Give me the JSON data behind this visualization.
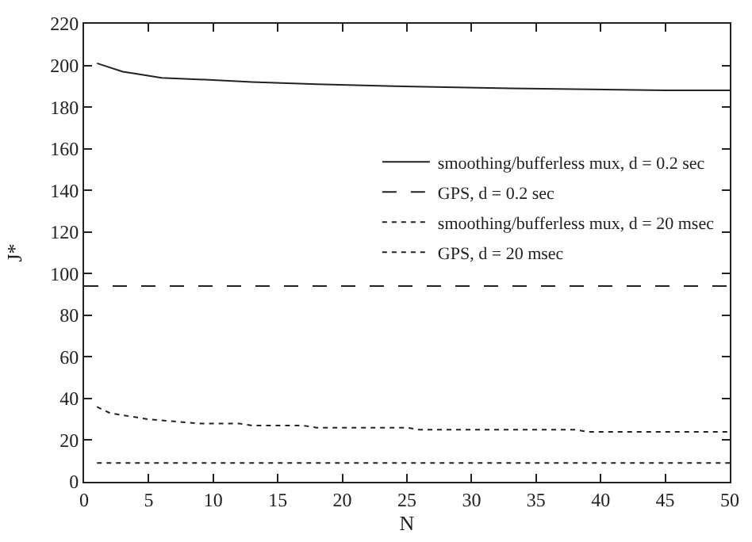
{
  "chart_data": {
    "type": "line",
    "xlabel": "N",
    "ylabel": "J*",
    "xlim": [
      0,
      50
    ],
    "xticks": [
      0,
      5,
      10,
      15,
      20,
      25,
      30,
      35,
      40,
      45,
      50
    ],
    "ylim": [
      0,
      220
    ],
    "yticks": [
      0,
      20,
      40,
      60,
      80,
      100,
      120,
      140,
      160,
      180,
      200,
      220
    ],
    "legend": "right",
    "marker": "none",
    "series": [
      {
        "name": "smoothing/bufferless mux, d = 0.2 sec",
        "color": "#222222",
        "line_style": "solid",
        "x": [
          1,
          3,
          4,
          6,
          10,
          13,
          18,
          24,
          33,
          45,
          50
        ],
        "values": [
          201,
          197,
          196,
          194,
          193,
          192,
          191,
          190,
          189,
          188,
          188
        ]
      },
      {
        "name": "GPS, d = 0.2 sec",
        "color": "#222222",
        "line_style": "dashed",
        "x": [
          0,
          50
        ],
        "values": [
          94,
          94
        ]
      },
      {
        "name": "smoothing/bufferless mux, d = 20 msec",
        "color": "#222222",
        "line_style": "dotted",
        "x": [
          1,
          2,
          4,
          5,
          7,
          9,
          12,
          13,
          17,
          18,
          25,
          26,
          38,
          39,
          50
        ],
        "values": [
          36,
          33,
          31,
          30,
          29,
          28,
          28,
          27,
          27,
          26,
          26,
          25,
          25,
          24,
          24
        ]
      },
      {
        "name": "GPS, d = 20 msec",
        "color": "#222222",
        "line_style": "dotted",
        "x": [
          1,
          50
        ],
        "values": [
          9,
          9
        ]
      }
    ]
  }
}
